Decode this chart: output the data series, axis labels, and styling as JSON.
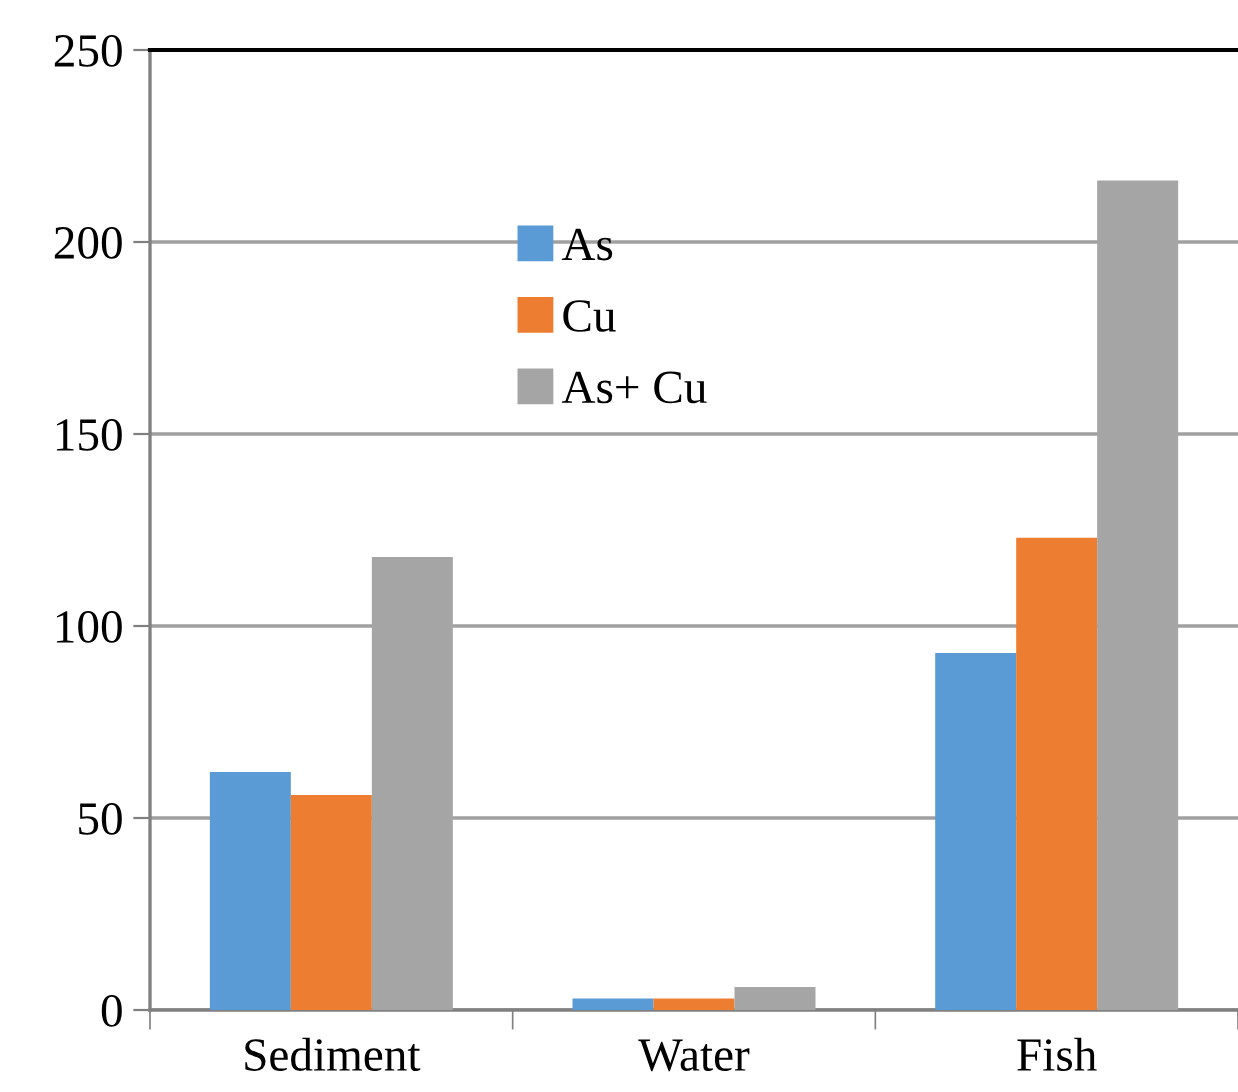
{
  "chart_data": {
    "type": "bar",
    "categories": [
      "Sediment",
      "Water",
      "Fish"
    ],
    "series": [
      {
        "name": "As",
        "color": "#5b9bd5",
        "values": [
          62,
          3,
          93
        ]
      },
      {
        "name": "Cu",
        "color": "#ed7d31",
        "values": [
          56,
          3,
          123
        ]
      },
      {
        "name": "As+ Cu",
        "color": "#a5a5a5",
        "values": [
          118,
          6,
          216
        ]
      }
    ],
    "ylim": [
      0,
      250
    ],
    "yticks": [
      0,
      50,
      100,
      150,
      200,
      250
    ],
    "grid": "y",
    "legend": "top"
  }
}
